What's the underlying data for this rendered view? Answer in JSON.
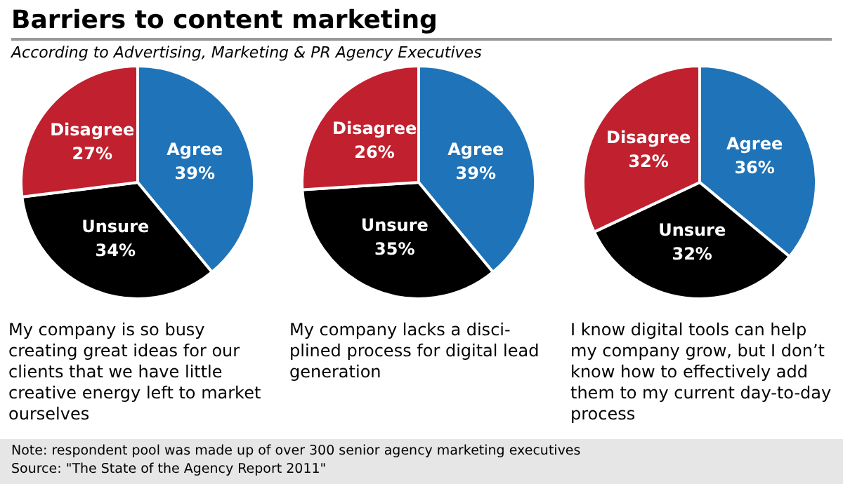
{
  "chart_data": [
    {
      "type": "pie",
      "title": "Barriers to content marketing",
      "subtitle": "According to Advertising, Marketing & PR Agency Executives",
      "categories": [
        "Agree",
        "Unsure",
        "Disagree"
      ],
      "values": [
        39,
        34,
        27
      ],
      "value_labels": [
        "39%",
        "34%",
        "27%"
      ],
      "colors": [
        "#1f73b8",
        "#000000",
        "#c1202f"
      ],
      "annotations": [
        "My company is so busy creating great ideas for our clients that we have little creative energy left to market ourselves",
        "Note: respondent pool was made up of over 300 senior agency marketing executives",
        "Source: \"The State of the Agency Report 2011\""
      ]
    },
    {
      "type": "pie",
      "categories": [
        "Agree",
        "Unsure",
        "Disagree"
      ],
      "values": [
        39,
        35,
        26
      ],
      "value_labels": [
        "39%",
        "35%",
        "26%"
      ],
      "colors": [
        "#1f73b8",
        "#000000",
        "#c1202f"
      ],
      "annotations": [
        "My company lacks a disci-plined process for digital lead generation"
      ]
    },
    {
      "type": "pie",
      "categories": [
        "Agree",
        "Unsure",
        "Disagree"
      ],
      "values": [
        36,
        32,
        32
      ],
      "value_labels": [
        "36%",
        "32%",
        "32%"
      ],
      "colors": [
        "#1f73b8",
        "#000000",
        "#c1202f"
      ],
      "annotations": [
        "I know digital tools can help my company grow, but I don’t know how to effectively add them to my current day-to-day process"
      ]
    }
  ]
}
